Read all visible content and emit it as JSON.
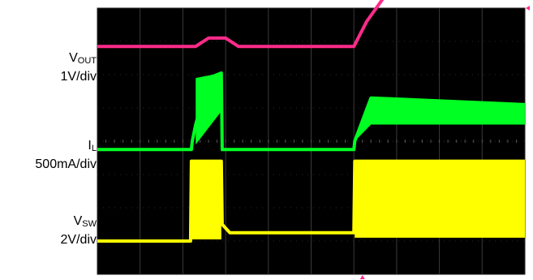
{
  "channels": [
    {
      "name": "V",
      "subscript": "OUT",
      "scale": "1V/div",
      "color": "#ff2b8a"
    },
    {
      "name": "I",
      "subscript": "L",
      "scale": "500mA/div",
      "color": "#00ff22"
    },
    {
      "name": "V",
      "subscript": "SW",
      "scale": "2V/div",
      "color": "#ffff00"
    }
  ],
  "chart_data": {
    "type": "line",
    "grid": true,
    "x_divisions": 10,
    "y_divisions": 8,
    "series": [
      {
        "name": "VOUT",
        "unit": "1V/div",
        "color": "#ff2b8a",
        "x": [
          0,
          2.3,
          2.6,
          3.0,
          3.3,
          6.0,
          6.3,
          6.8,
          7.0,
          10
        ],
        "y": [
          6.85,
          6.85,
          7.1,
          7.1,
          6.85,
          6.85,
          7.6,
          8.5,
          8.6,
          8.6
        ]
      },
      {
        "name": "IL",
        "unit": "500mA/div",
        "color": "#00ff22",
        "x": [
          0,
          2.2,
          2.22,
          2.3,
          2.6,
          2.9,
          2.92,
          6.0,
          6.02,
          6.4,
          10
        ],
        "y": [
          3.75,
          3.75,
          4.0,
          4.5,
          5.9,
          6.05,
          3.75,
          3.75,
          4.0,
          5.3,
          5.1
        ]
      },
      {
        "name": "VSW",
        "unit": "2V/div",
        "color": "#ffff00",
        "x": [
          0,
          2.18,
          2.2,
          2.9,
          2.92,
          3.1,
          6.0,
          6.02,
          10
        ],
        "y": [
          1.0,
          1.0,
          3.4,
          3.4,
          1.5,
          1.25,
          1.25,
          3.4,
          3.4
        ]
      }
    ]
  }
}
